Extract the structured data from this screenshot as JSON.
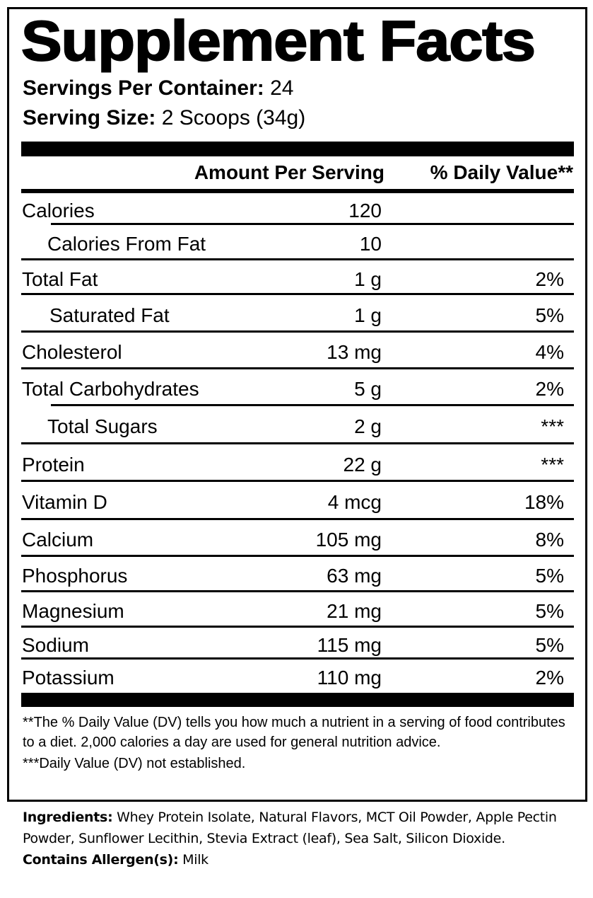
{
  "title": "Supplement Facts",
  "servings_per_container": {
    "label": "Servings Per Container:",
    "value": "24"
  },
  "serving_size": {
    "label": "Serving Size:",
    "value": "2 Scoops (34g)"
  },
  "header": {
    "amount": "Amount Per Serving",
    "dv": "% Daily Value**"
  },
  "rows": [
    {
      "name": "Calories",
      "amount": "120",
      "dv": ""
    },
    {
      "name": "Calories From Fat",
      "amount": "10",
      "dv": ""
    },
    {
      "name": "Total Fat",
      "amount": "1 g",
      "dv": "2%"
    },
    {
      "name": "Saturated Fat",
      "amount": "1 g",
      "dv": "5%"
    },
    {
      "name": "Cholesterol",
      "amount": "13 mg",
      "dv": "4%"
    },
    {
      "name": "Total Carbohydrates",
      "amount": "5 g",
      "dv": "2%"
    },
    {
      "name": "Total Sugars",
      "amount": "2 g",
      "dv": "***"
    },
    {
      "name": "Protein",
      "amount": "22 g",
      "dv": "***"
    },
    {
      "name": "Vitamin D",
      "amount": "4 mcg",
      "dv": "18%"
    },
    {
      "name": "Calcium",
      "amount": "105 mg",
      "dv": "8%"
    },
    {
      "name": "Phosphorus",
      "amount": "63 mg",
      "dv": "5%"
    },
    {
      "name": "Magnesium",
      "amount": "21 mg",
      "dv": "5%"
    },
    {
      "name": "Sodium",
      "amount": "115 mg",
      "dv": "5%"
    },
    {
      "name": "Potassium",
      "amount": "110 mg",
      "dv": "2%"
    }
  ],
  "footnotes": {
    "dv_note": "**The % Daily Value (DV) tells you how much a nutrient in a serving of food contributes to a diet. 2,000 calories a day are used for general nutrition advice.",
    "not_established": "***Daily Value (DV) not established."
  },
  "ingredients": {
    "label": "Ingredients:",
    "value": "Whey Protein Isolate, Natural Flavors, MCT Oil Powder, Apple Pectin Powder, Sunflower Lecithin, Stevia Extract (leaf), Sea Salt, Silicon Dioxide."
  },
  "allergens": {
    "label": "Contains Allergen(s):",
    "value": "Milk"
  }
}
